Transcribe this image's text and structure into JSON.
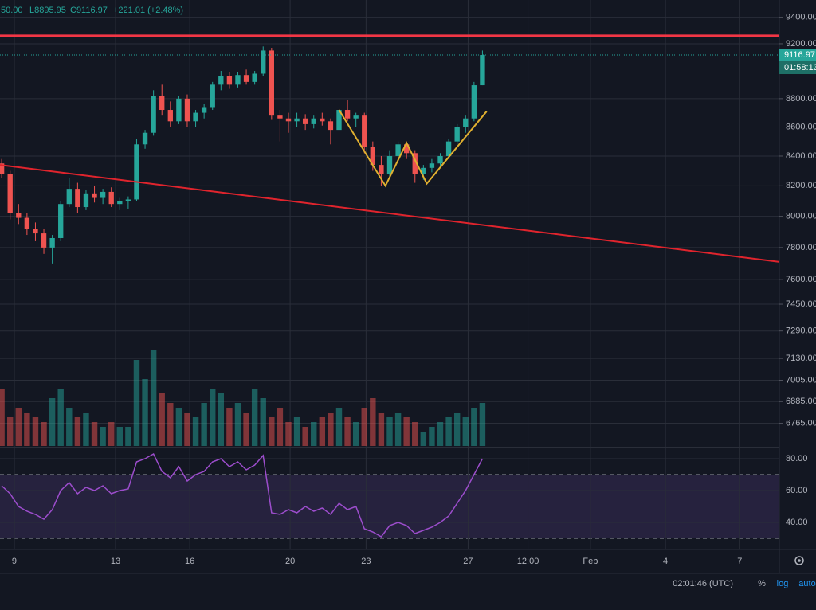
{
  "chart_data": {
    "type": "candlestick",
    "header": [
      "50.00",
      "L8895.95",
      "C9116.97",
      "+221.01 (+2.48%)"
    ],
    "open": [
      8350,
      8280,
      8020,
      7990,
      7920,
      7890,
      7800,
      7860,
      8080,
      8180,
      8060,
      8150,
      8120,
      8160,
      8080,
      8100,
      8110,
      8480,
      8560,
      8820,
      8720,
      8640,
      8800,
      8640,
      8700,
      8740,
      8900,
      8960,
      8900,
      8970,
      8920,
      8980,
      9150,
      8680,
      8660,
      8640,
      8660,
      8620,
      8660,
      8640,
      8580,
      8720,
      8660,
      8680,
      8460,
      8340,
      8280,
      8400,
      8480,
      8420,
      8280,
      8320,
      8350,
      8400,
      8500,
      8600,
      8660,
      8895.95
    ],
    "high": [
      8380,
      8300,
      8080,
      8020,
      7960,
      7920,
      7880,
      8100,
      8250,
      8220,
      8170,
      8200,
      8180,
      8190,
      8120,
      8130,
      8520,
      8580,
      8860,
      8900,
      8780,
      8820,
      8830,
      8720,
      8760,
      8920,
      9000,
      8990,
      8990,
      9010,
      9000,
      9180,
      9170,
      8720,
      8700,
      8700,
      8690,
      8680,
      8700,
      8660,
      8780,
      8790,
      8700,
      8700,
      8500,
      8400,
      8440,
      8500,
      8500,
      8440,
      8340,
      8380,
      8420,
      8520,
      8620,
      8680,
      8920,
      9150
    ],
    "low": [
      8250,
      7980,
      7950,
      7880,
      7840,
      7760,
      7700,
      7840,
      8060,
      8020,
      8040,
      8090,
      8080,
      8060,
      8040,
      8050,
      8100,
      8450,
      8540,
      8680,
      8600,
      8620,
      8600,
      8600,
      8660,
      8720,
      8860,
      8870,
      8880,
      8900,
      8900,
      8960,
      8650,
      8500,
      8560,
      8600,
      8580,
      8590,
      8610,
      8480,
      8560,
      8640,
      8600,
      8420,
      8300,
      8200,
      8260,
      8380,
      8380,
      8220,
      8240,
      8290,
      8320,
      8380,
      8480,
      8560,
      8640,
      8895.95
    ],
    "close": [
      8280,
      8020,
      7990,
      7920,
      7890,
      7800,
      7860,
      8080,
      8180,
      8060,
      8150,
      8120,
      8160,
      8080,
      8100,
      8110,
      8480,
      8560,
      8820,
      8720,
      8640,
      8800,
      8640,
      8700,
      8740,
      8900,
      8960,
      8900,
      8970,
      8920,
      8980,
      9150,
      8680,
      8660,
      8640,
      8660,
      8620,
      8660,
      8640,
      8580,
      8720,
      8660,
      8680,
      8460,
      8340,
      8280,
      8400,
      8480,
      8420,
      8280,
      8320,
      8350,
      8400,
      8500,
      8600,
      8660,
      8895.95,
      9116.97
    ],
    "volume": [
      60,
      30,
      40,
      35,
      30,
      25,
      50,
      60,
      40,
      30,
      35,
      25,
      20,
      25,
      20,
      20,
      90,
      70,
      100,
      55,
      45,
      40,
      35,
      30,
      45,
      60,
      55,
      40,
      45,
      35,
      60,
      50,
      30,
      40,
      25,
      30,
      20,
      25,
      30,
      35,
      40,
      30,
      25,
      40,
      50,
      35,
      30,
      35,
      30,
      25,
      15,
      20,
      25,
      30,
      35,
      30,
      40,
      45
    ],
    "rsi": [
      63,
      58,
      50,
      47,
      45,
      42,
      48,
      60,
      65,
      58,
      62,
      60,
      63,
      58,
      60,
      61,
      78,
      80,
      83,
      72,
      68,
      75,
      66,
      70,
      72,
      78,
      80,
      75,
      78,
      73,
      76,
      82,
      46,
      45,
      48,
      46,
      50,
      47,
      49,
      45,
      52,
      48,
      50,
      36,
      34,
      31,
      38,
      40,
      38,
      33,
      35,
      37,
      40,
      44,
      52,
      60,
      70,
      80
    ],
    "up_color": "#26a69a",
    "down_color": "#ef5350",
    "rsi_color": "#9c4dcc",
    "xlim": [
      -0.2,
      92.2
    ],
    "xticks": [
      {
        "value": 1.5,
        "label": "9"
      },
      {
        "value": 13.5,
        "label": "13"
      },
      {
        "value": 22.3,
        "label": "16"
      },
      {
        "value": 34.2,
        "label": "20"
      },
      {
        "value": 43.2,
        "label": "23"
      },
      {
        "value": 55.3,
        "label": "27"
      },
      {
        "value": 62.4,
        "label": "12:00"
      },
      {
        "value": 69.8,
        "label": "Feb"
      },
      {
        "value": 78.7,
        "label": "4"
      },
      {
        "value": 87.5,
        "label": "7"
      }
    ],
    "ylim": [
      6642,
      9532
    ],
    "log_scale": true,
    "grid": true,
    "yticks": [
      {
        "value": 9400,
        "label": "9400.00"
      },
      {
        "value": 9200,
        "label": "9200.00"
      },
      {
        "value": 8800,
        "label": "8800.00"
      },
      {
        "value": 8600,
        "label": "8600.00"
      },
      {
        "value": 8400,
        "label": "8400.00"
      },
      {
        "value": 8200,
        "label": "8200.00"
      },
      {
        "value": 8000,
        "label": "8000.00"
      },
      {
        "value": 7800,
        "label": "7800.00"
      },
      {
        "value": 7600,
        "label": "7600.00"
      },
      {
        "value": 7450,
        "label": "7450.00"
      },
      {
        "value": 7290,
        "label": "7290.00"
      },
      {
        "value": 7130,
        "label": "7130.00"
      },
      {
        "value": 7005,
        "label": "7005.00"
      },
      {
        "value": 6885,
        "label": "6885.00"
      },
      {
        "value": 6765,
        "label": "6765.00"
      }
    ],
    "last_price": 9116.97,
    "countdown": "01:58:13",
    "rsi_ylim": [
      23,
      86.5
    ],
    "rsi_yticks": [
      {
        "value": 80,
        "label": "80.00"
      },
      {
        "value": 60,
        "label": "60.00"
      },
      {
        "value": 40,
        "label": "40.00"
      }
    ],
    "rsi_bands": [
      70,
      30
    ],
    "lines": [
      {
        "color": "#f23645",
        "x": [
          -0.2,
          92.2
        ],
        "values": [
          9260,
          9260
        ]
      },
      {
        "color": "#e0242d",
        "x": [
          -0.2,
          92.2
        ],
        "values": [
          8340,
          7710
        ]
      },
      {
        "color": "#e0b030",
        "x": [
          40,
          45.5,
          48,
          50.4,
          57.5
        ],
        "values": [
          8720,
          8200,
          8490,
          8215,
          8710
        ]
      }
    ],
    "footer": {
      "time": "02:01:46 (UTC)",
      "buttons": [
        "%",
        "log",
        "auto"
      ]
    }
  }
}
